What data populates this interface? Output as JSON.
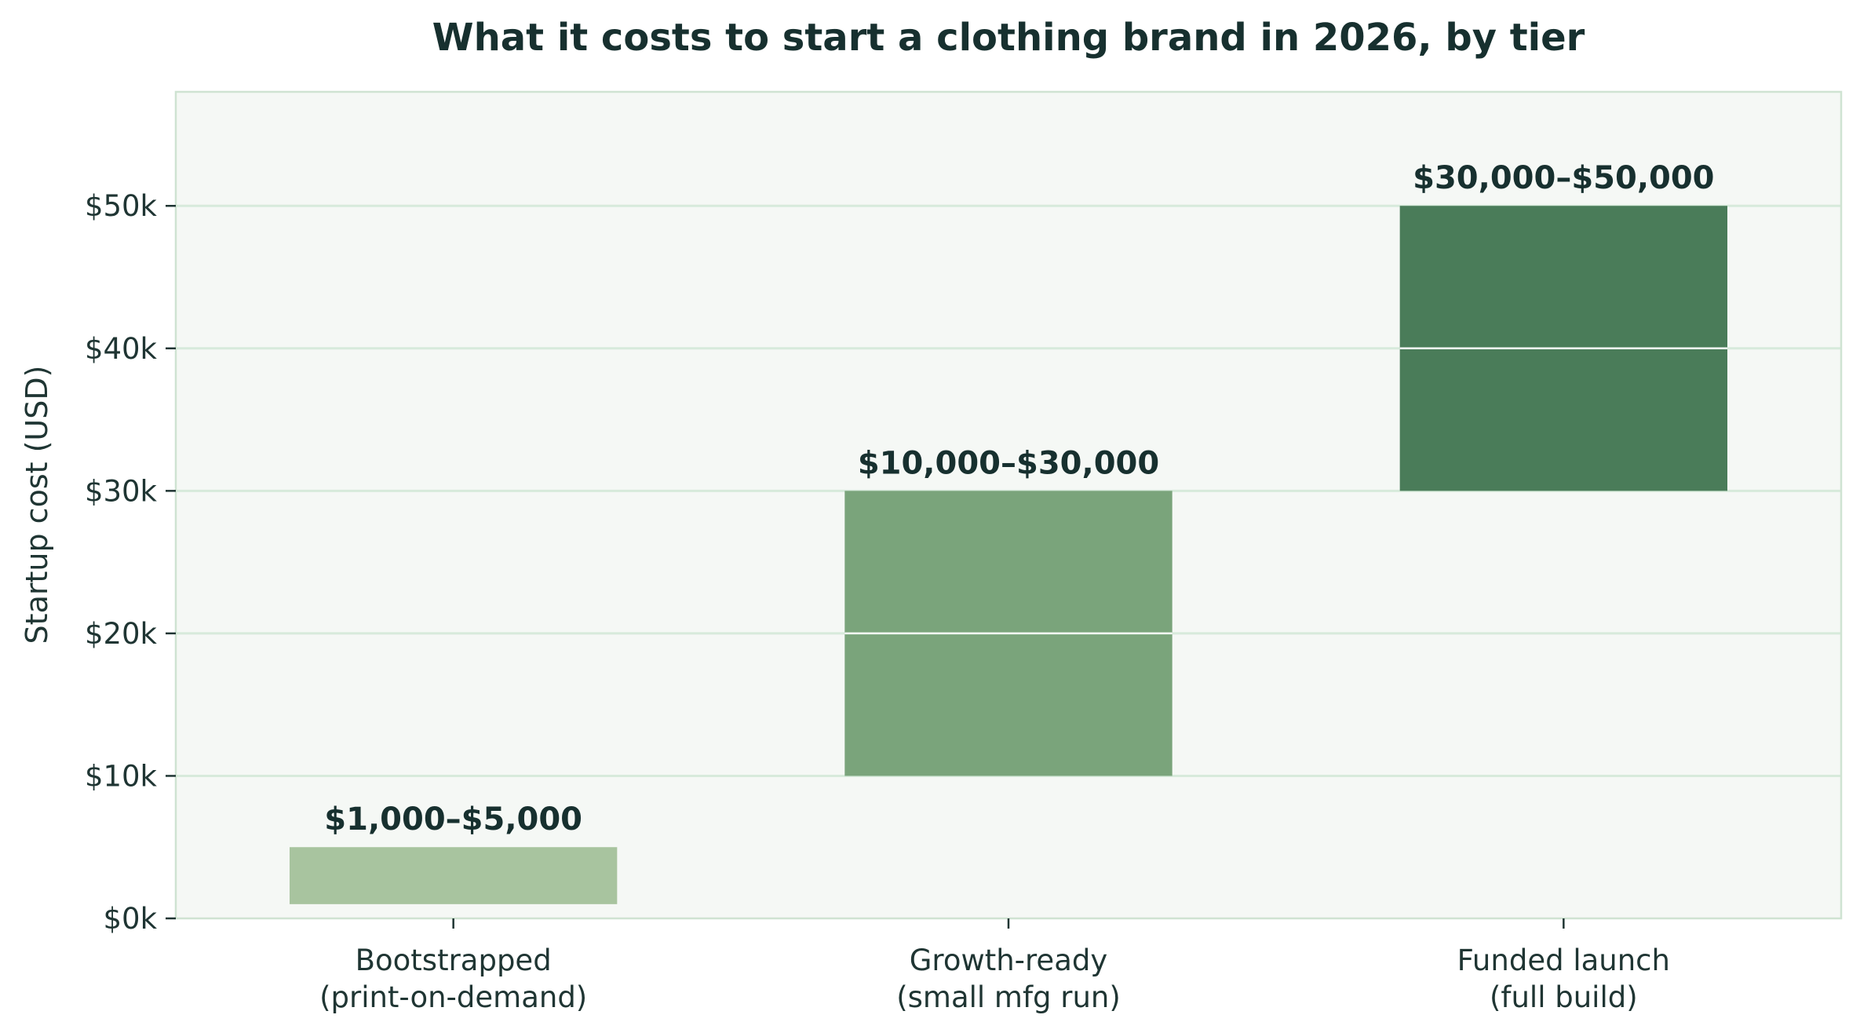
{
  "chart_data": {
    "type": "bar",
    "title": "What it costs to start a clothing brand in 2026, by tier",
    "xlabel": "",
    "ylabel": "Startup cost (USD)",
    "ylim": [
      0,
      58000
    ],
    "yticks": [
      0,
      10000,
      20000,
      30000,
      40000,
      50000
    ],
    "ytick_labels": [
      "$0k",
      "$10k",
      "$20k",
      "$30k",
      "$40k",
      "$50k"
    ],
    "grid": "horizontal",
    "legend": "none",
    "categories": [
      [
        "Bootstrapped",
        "(print-on-demand)"
      ],
      [
        "Growth-ready",
        "(small mfg run)"
      ],
      [
        "Funded launch",
        "(full build)"
      ]
    ],
    "ranges": [
      {
        "low": 1000,
        "high": 5000,
        "label": "$1,000–$5,000",
        "color": "#a8c49f"
      },
      {
        "low": 10000,
        "high": 30000,
        "label": "$10,000–$30,000",
        "color": "#7aa47b"
      },
      {
        "low": 30000,
        "high": 50000,
        "label": "$30,000–$50,000",
        "color": "#4a7c59"
      }
    ],
    "colors": {
      "plot_background": "#f5f8f5",
      "grid": "#d7eadb",
      "frame": "#cfe3d2",
      "text": "#1f3533"
    }
  }
}
